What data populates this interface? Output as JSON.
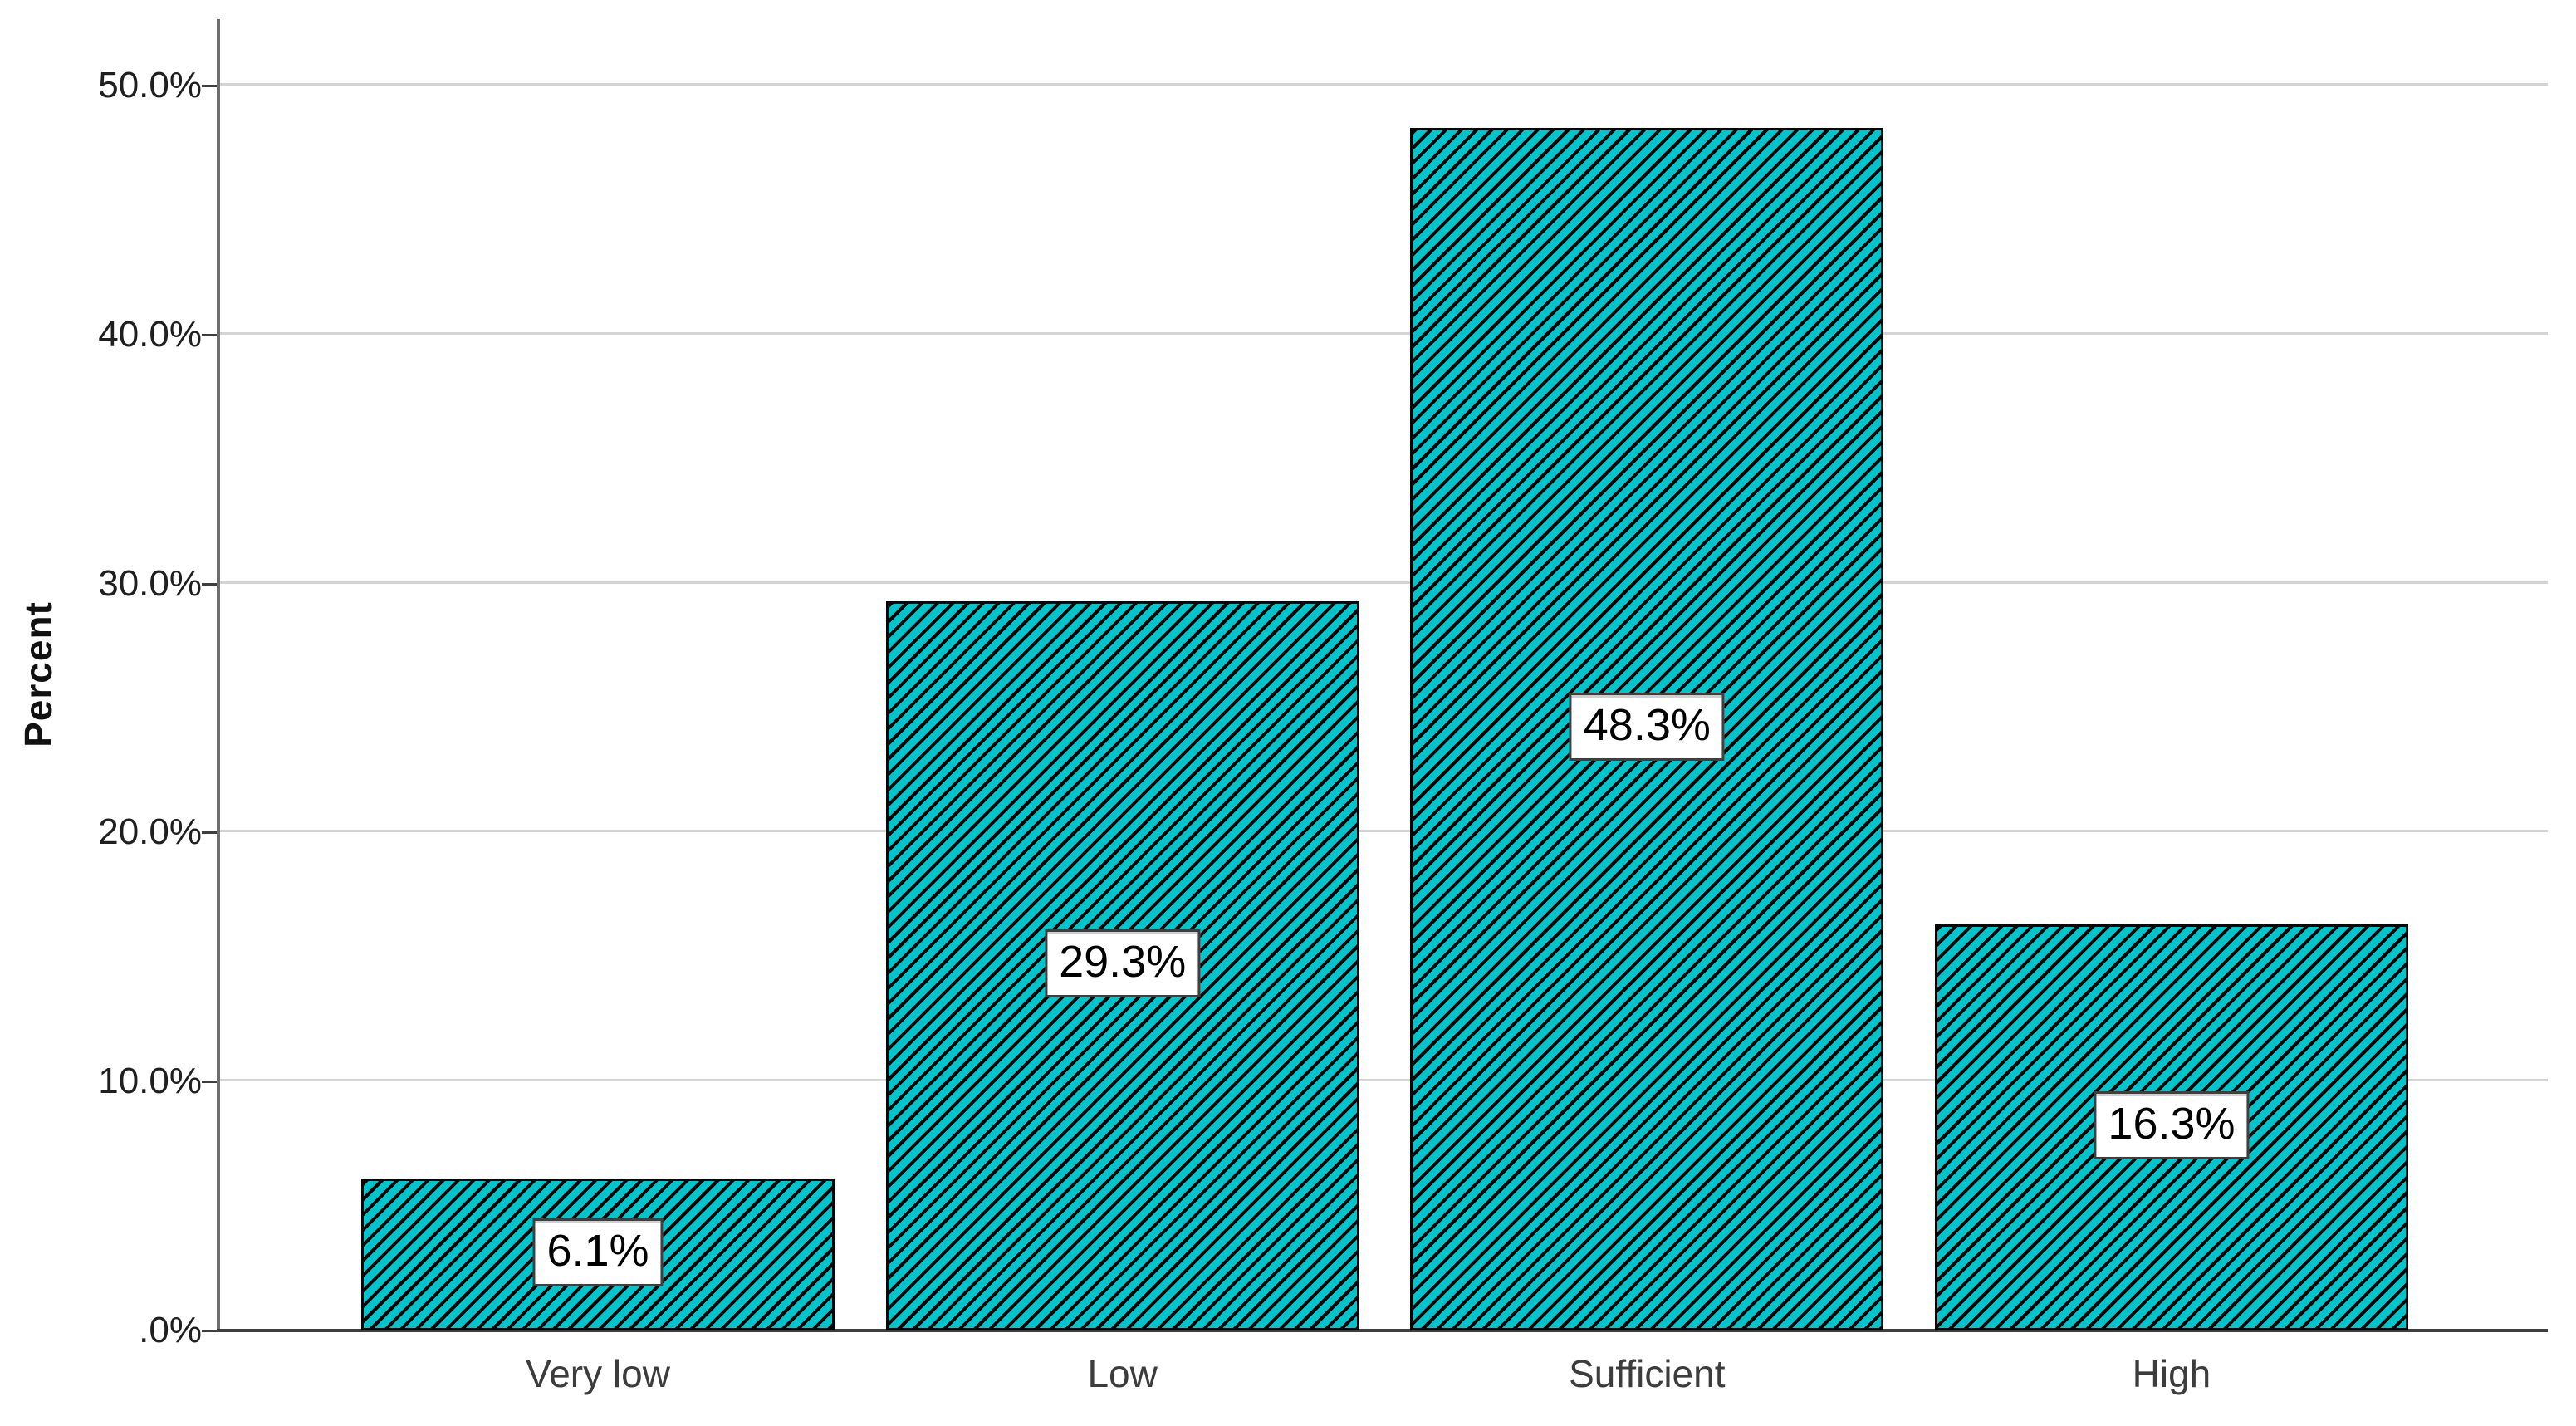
{
  "chart_data": {
    "type": "bar",
    "title": "",
    "categories": [
      "Very low",
      "Low",
      "Sufficient",
      "High"
    ],
    "values": [
      6.1,
      29.3,
      48.3,
      16.3
    ],
    "value_labels": [
      "6.1%",
      "29.3%",
      "48.3%",
      "16.3%"
    ],
    "xlabel": "",
    "ylabel": "Percent",
    "y_ticks": [
      ".0%",
      "10.0%",
      "20.0%",
      "30.0%",
      "40.0%",
      "50.0%"
    ],
    "y_tick_values": [
      0,
      10,
      20,
      30,
      40,
      50
    ],
    "ylim": [
      0,
      52.7
    ],
    "grid": "horizontal-gridlines",
    "legend": "none",
    "bar_fill_color": "#05C3CB",
    "bar_pattern": "diagonal-hatch",
    "hatch_color": "#050505",
    "gridline_color": "#d4d4d4",
    "label_box": {
      "fill": "#ffffff",
      "border_color": "#3f3f3f",
      "text_color": "#000000"
    }
  }
}
